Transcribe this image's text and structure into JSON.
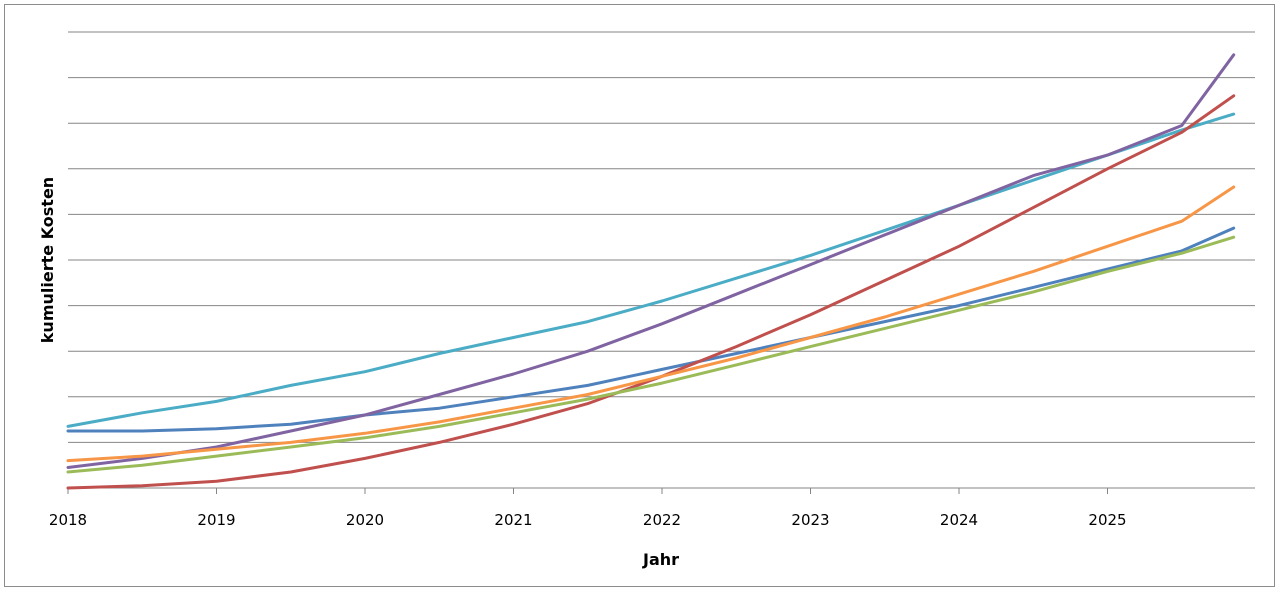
{
  "chart_data": {
    "type": "line",
    "title": "",
    "xlabel": "Jahr",
    "ylabel": "kumulierte Kosten",
    "x_ticks": [
      "2018",
      "2019",
      "2020",
      "2021",
      "2022",
      "2023",
      "2024",
      "2025"
    ],
    "xlim": [
      2018,
      2025.9
    ],
    "ylim": [
      0,
      100
    ],
    "grid": true,
    "x": [
      2018,
      2018.5,
      2019,
      2019.5,
      2020,
      2020.5,
      2021,
      2021.5,
      2022,
      2022.5,
      2023,
      2023.5,
      2024,
      2024.5,
      2025,
      2025.5,
      2025.85
    ],
    "series": [
      {
        "color": "#4bacc6",
        "values": [
          13.5,
          16.5,
          19,
          22.5,
          25.5,
          29.5,
          33,
          36.5,
          41,
          46,
          51,
          56.5,
          62,
          67.5,
          73,
          78.5,
          82
        ]
      },
      {
        "color": "#4f81bd",
        "values": [
          12.5,
          12.5,
          13,
          14,
          16,
          17.5,
          20,
          22.5,
          26,
          29.5,
          33,
          36.5,
          40,
          44,
          48,
          52,
          57
        ]
      },
      {
        "color": "#8064a2",
        "values": [
          4.5,
          6.5,
          9,
          12.5,
          16,
          20.5,
          25,
          30,
          36,
          42.5,
          49,
          55.5,
          62,
          68.5,
          73,
          79.5,
          95
        ]
      },
      {
        "color": "#c0504d",
        "values": [
          0,
          0.5,
          1.5,
          3.5,
          6.5,
          10,
          14,
          18.5,
          24.5,
          31,
          38,
          45.5,
          53,
          61.5,
          70,
          78,
          86
        ]
      },
      {
        "color": "#f79646",
        "values": [
          6,
          7,
          8.5,
          10,
          12,
          14.5,
          17.5,
          20.5,
          24.5,
          28.5,
          33,
          37.5,
          42.5,
          47.5,
          53,
          58.5,
          66
        ]
      },
      {
        "color": "#9bbb59",
        "values": [
          3.5,
          5,
          7,
          9,
          11,
          13.5,
          16.5,
          19.5,
          23,
          27,
          31,
          35,
          39,
          43,
          47.5,
          51.5,
          55
        ]
      }
    ]
  }
}
